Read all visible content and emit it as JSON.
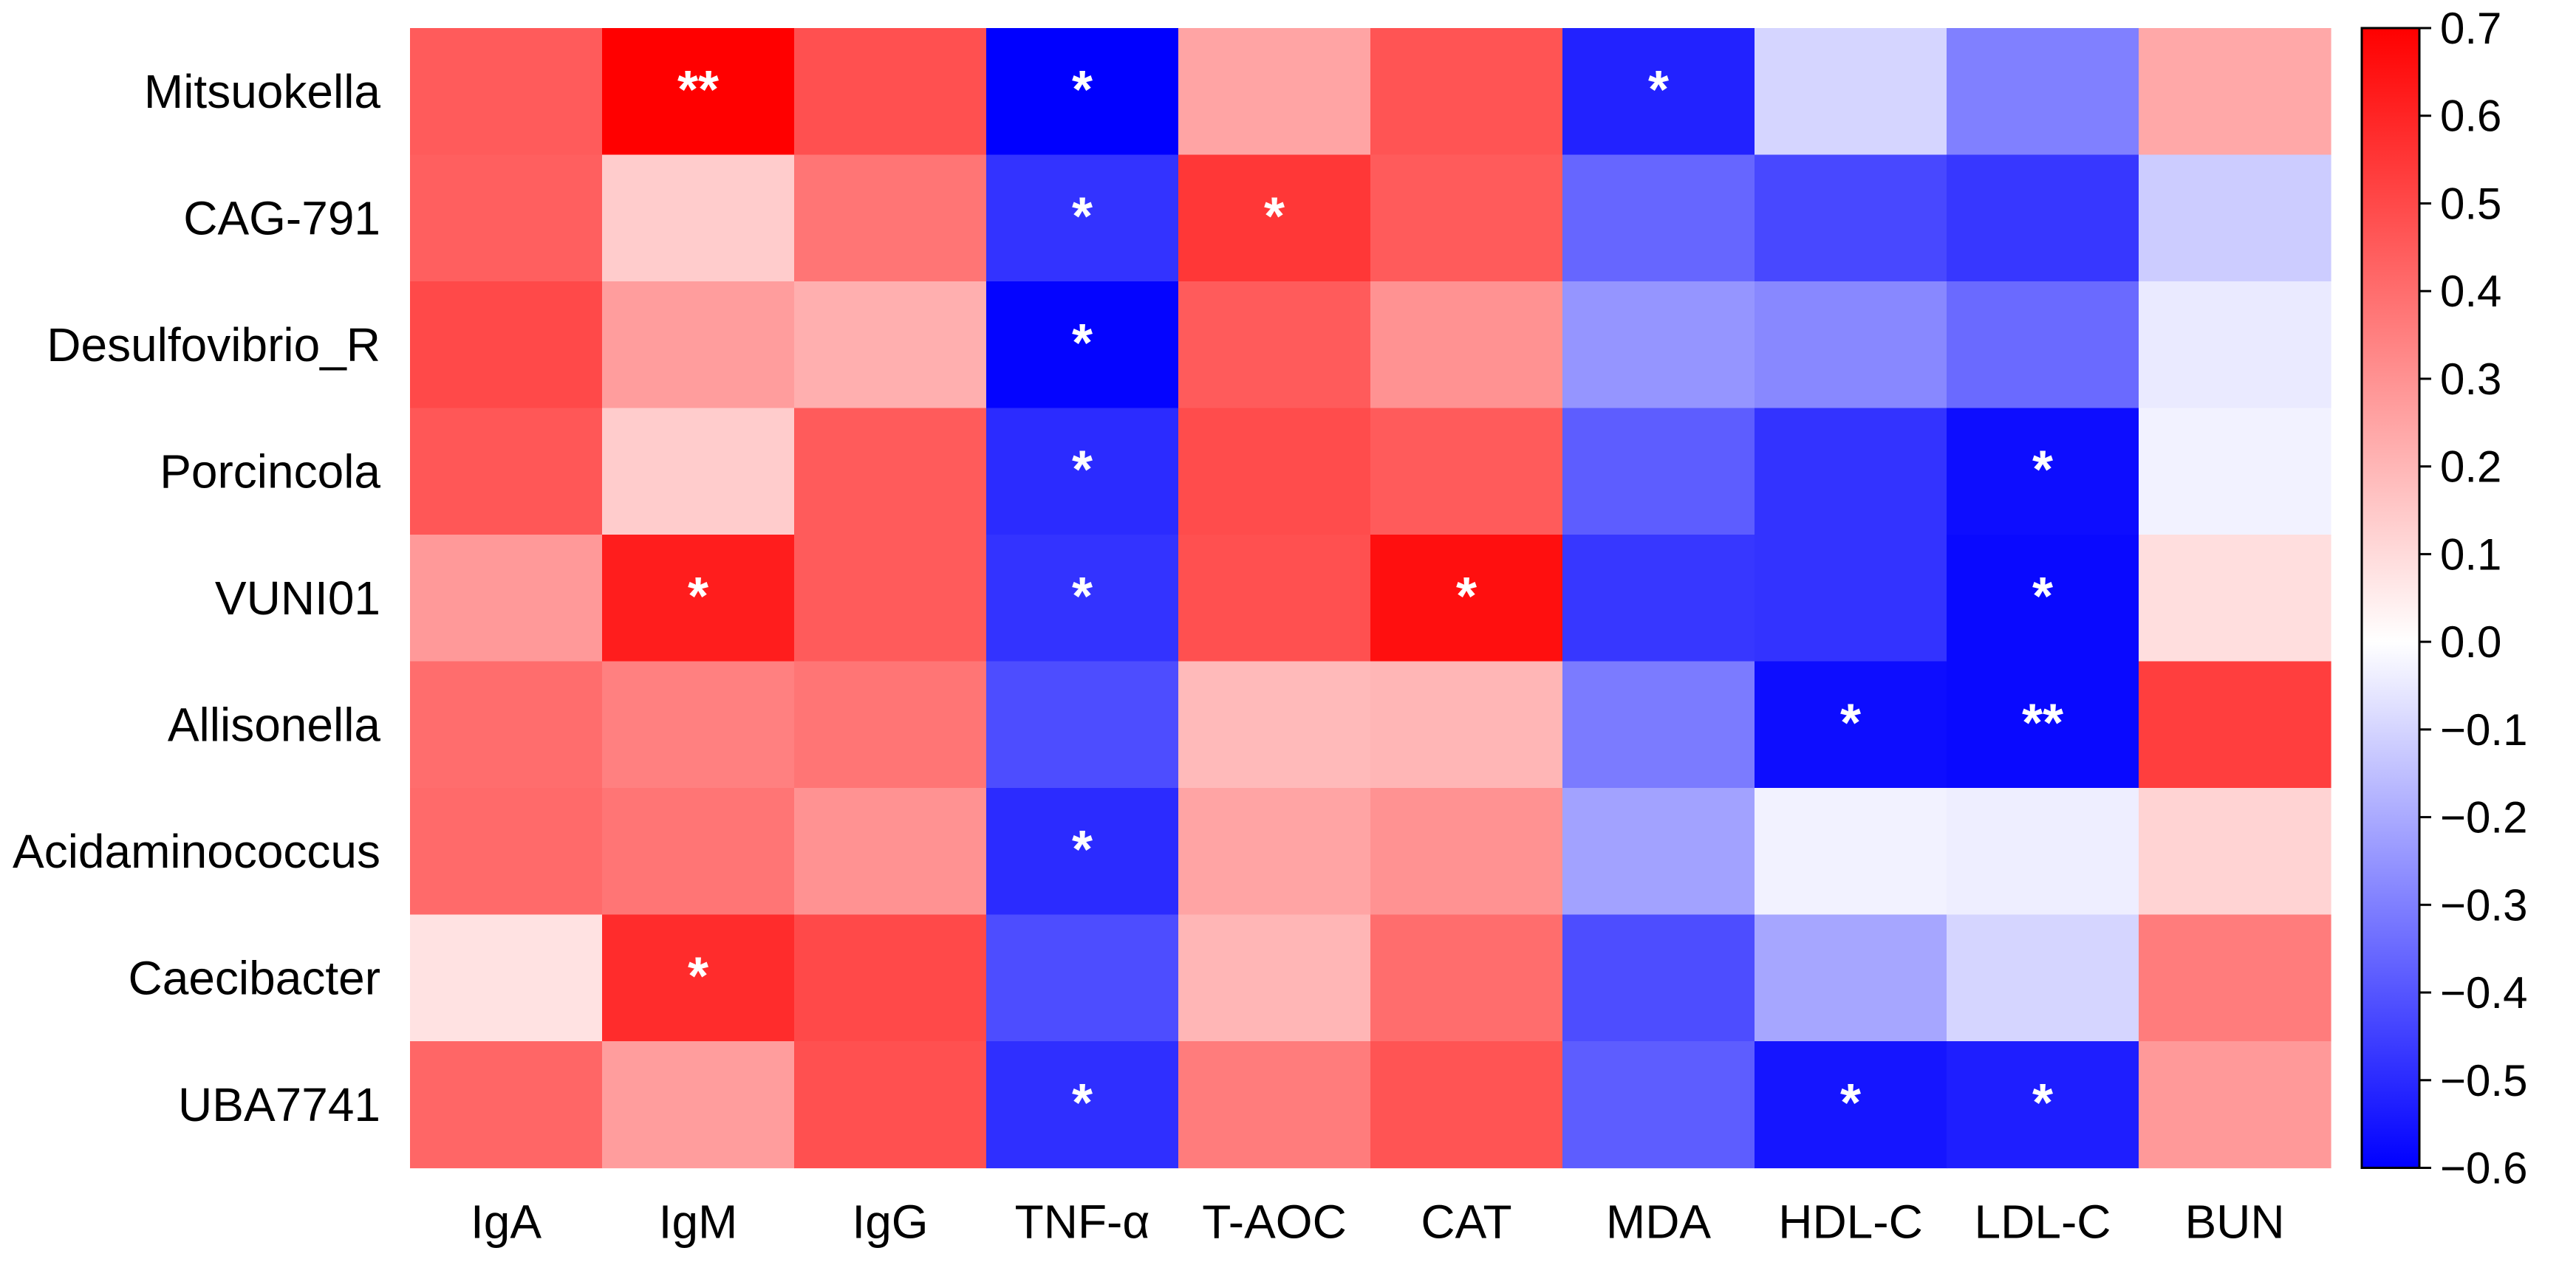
{
  "chart_data": {
    "type": "heatmap",
    "title": "",
    "xlabel": "",
    "ylabel": "",
    "rows": [
      "Mitsuokella",
      "CAG-791",
      "Desulfovibrio_R",
      "Porcincola",
      "VUNI01",
      "Allisonella",
      "Acidaminococcus",
      "Caecibacter",
      "UBA7741"
    ],
    "columns": [
      "IgA",
      "IgM",
      "IgG",
      "TNF-α",
      "T-AOC",
      "CAT",
      "MDA",
      "HDL-C",
      "LDL-C",
      "BUN"
    ],
    "values": [
      [
        0.45,
        0.7,
        0.48,
        -0.6,
        0.25,
        0.47,
        -0.52,
        -0.1,
        -0.3,
        0.24
      ],
      [
        0.44,
        0.14,
        0.38,
        -0.48,
        0.55,
        0.45,
        -0.36,
        -0.43,
        -0.47,
        -0.12
      ],
      [
        0.5,
        0.27,
        0.22,
        -0.59,
        0.45,
        0.3,
        -0.25,
        -0.28,
        -0.35,
        -0.05
      ],
      [
        0.46,
        0.14,
        0.45,
        -0.5,
        0.49,
        0.45,
        -0.38,
        -0.48,
        -0.57,
        -0.03
      ],
      [
        0.28,
        0.62,
        0.45,
        -0.48,
        0.48,
        0.66,
        -0.47,
        -0.48,
        -0.58,
        0.09
      ],
      [
        0.4,
        0.35,
        0.38,
        -0.42,
        0.19,
        0.2,
        -0.31,
        -0.57,
        -0.58,
        0.53
      ],
      [
        0.41,
        0.38,
        0.3,
        -0.5,
        0.25,
        0.3,
        -0.22,
        -0.03,
        -0.04,
        0.12
      ],
      [
        0.08,
        0.58,
        0.5,
        -0.42,
        0.2,
        0.4,
        -0.42,
        -0.21,
        -0.1,
        0.36
      ],
      [
        0.42,
        0.27,
        0.48,
        -0.49,
        0.36,
        0.47,
        -0.38,
        -0.55,
        -0.53,
        0.28
      ]
    ],
    "significance": [
      [
        "",
        "**",
        "",
        "*",
        "",
        "",
        "*",
        "",
        "",
        ""
      ],
      [
        "",
        "",
        "",
        "*",
        "*",
        "",
        "",
        "",
        "",
        ""
      ],
      [
        "",
        "",
        "",
        "*",
        "",
        "",
        "",
        "",
        "",
        ""
      ],
      [
        "",
        "",
        "",
        "*",
        "",
        "",
        "",
        "",
        "*",
        ""
      ],
      [
        "",
        "*",
        "",
        "*",
        "",
        "*",
        "",
        "",
        "*",
        ""
      ],
      [
        "",
        "",
        "",
        "",
        "",
        "",
        "",
        "*",
        "**",
        ""
      ],
      [
        "",
        "",
        "",
        "*",
        "",
        "",
        "",
        "",
        "",
        ""
      ],
      [
        "",
        "*",
        "",
        "",
        "",
        "",
        "",
        "",
        "",
        ""
      ],
      [
        "",
        "",
        "",
        "*",
        "",
        "",
        "",
        "*",
        "*",
        ""
      ]
    ],
    "colorbar": {
      "range": [
        -0.6,
        0.7
      ],
      "ticks": [
        "0.7",
        "0.6",
        "0.5",
        "0.4",
        "0.3",
        "0.2",
        "0.1",
        "0.0",
        "-0.1",
        "-0.2",
        "-0.3",
        "-0.4",
        "-0.5",
        "-0.6"
      ],
      "colors": {
        "low": "#0000ff",
        "mid": "#ffffff",
        "high": "#ff0000"
      }
    }
  }
}
